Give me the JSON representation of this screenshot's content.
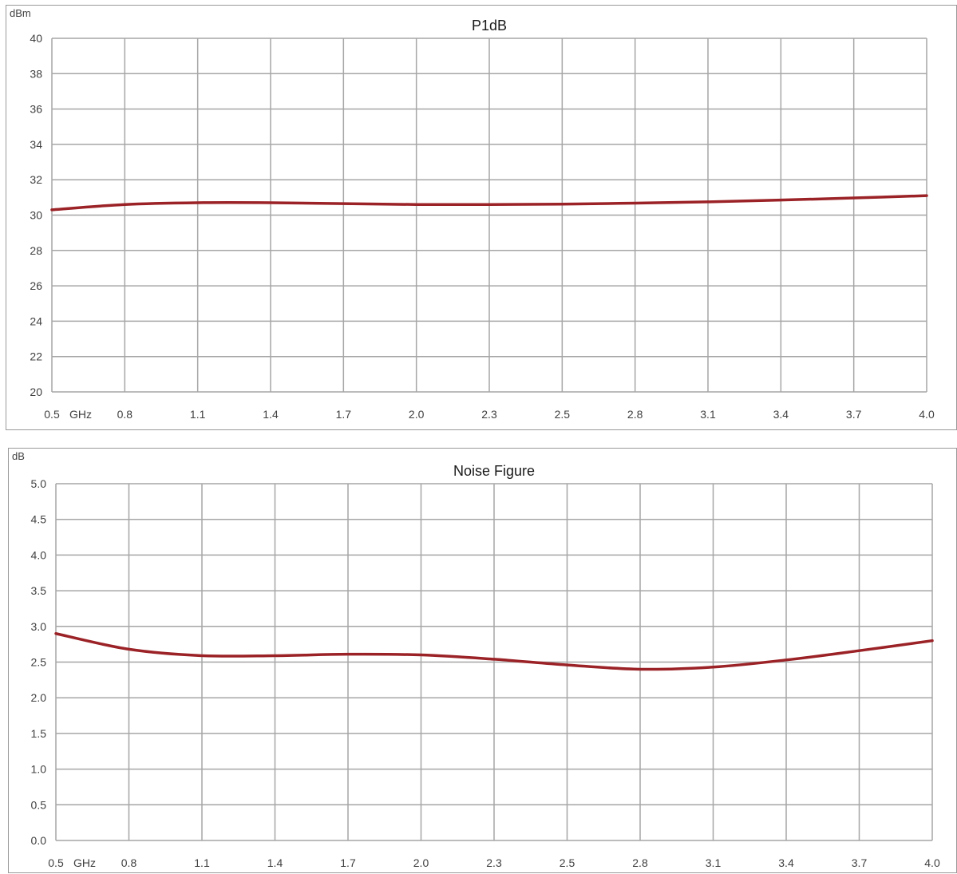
{
  "chart_data": [
    {
      "type": "line",
      "title": "P1dB",
      "ylabel": "dBm",
      "xlabel": "GHz",
      "x_ticks": [
        "0.5",
        "0.8",
        "1.1",
        "1.4",
        "1.7",
        "2.0",
        "2.3",
        "2.5",
        "2.8",
        "3.1",
        "3.4",
        "3.7",
        "4.0"
      ],
      "first_tick_suffix": "GHz",
      "y_ticks": [
        "40",
        "38",
        "36",
        "34",
        "32",
        "30",
        "28",
        "26",
        "24",
        "22",
        "20"
      ],
      "ylim": [
        20,
        40
      ],
      "grid": true,
      "series": [
        {
          "color": "#9b2226",
          "values": [
            30.3,
            30.6,
            30.7,
            30.7,
            30.65,
            30.6,
            30.6,
            30.62,
            30.68,
            30.75,
            30.85,
            30.97,
            31.1
          ]
        }
      ]
    },
    {
      "type": "line",
      "title": "Noise Figure",
      "ylabel": "dB",
      "xlabel": "GHz",
      "x_ticks": [
        "0.5",
        "0.8",
        "1.1",
        "1.4",
        "1.7",
        "2.0",
        "2.3",
        "2.5",
        "2.8",
        "3.1",
        "3.4",
        "3.7",
        "4.0"
      ],
      "first_tick_suffix": "GHz",
      "y_ticks": [
        "5.0",
        "4.5",
        "4.0",
        "3.5",
        "3.0",
        "2.5",
        "2.0",
        "1.5",
        "1.0",
        "0.5",
        "0.0"
      ],
      "ylim": [
        0,
        5
      ],
      "grid": true,
      "series": [
        {
          "color": "#9b2226",
          "values": [
            2.9,
            2.68,
            2.59,
            2.59,
            2.61,
            2.6,
            2.54,
            2.46,
            2.4,
            2.43,
            2.53,
            2.66,
            2.8
          ]
        }
      ]
    }
  ]
}
